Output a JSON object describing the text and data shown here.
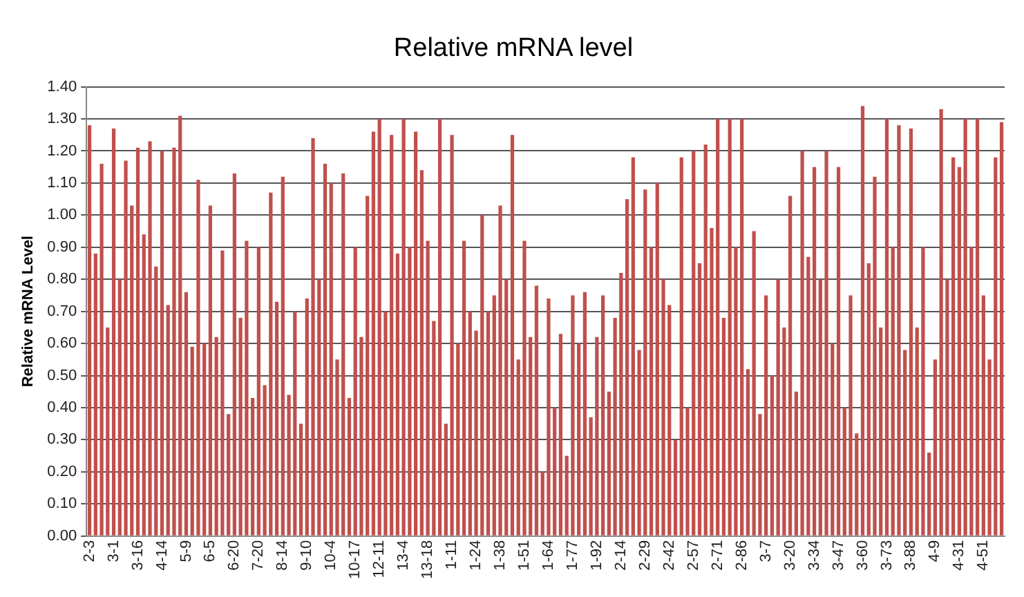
{
  "chart_data": {
    "type": "bar",
    "title": "Relative mRNA level",
    "ylabel": "Relative mRNA Level",
    "categories": [
      "2-3",
      null,
      null,
      null,
      "3-1",
      null,
      null,
      null,
      "3-16",
      null,
      null,
      null,
      "4-14",
      null,
      null,
      null,
      "5-9",
      null,
      null,
      null,
      "6-5",
      null,
      null,
      null,
      "6-20",
      null,
      null,
      null,
      "7-20",
      null,
      null,
      null,
      "8-14",
      null,
      null,
      null,
      "9-10",
      null,
      null,
      null,
      "10-4",
      null,
      null,
      null,
      "10-17",
      null,
      null,
      null,
      "12-11",
      null,
      null,
      null,
      "13-4",
      null,
      null,
      null,
      "13-18",
      null,
      null,
      null,
      "1-11",
      null,
      null,
      null,
      "1-24",
      null,
      null,
      null,
      "1-38",
      null,
      null,
      null,
      "1-51",
      null,
      null,
      null,
      "1-64",
      null,
      null,
      null,
      "1-77",
      null,
      null,
      null,
      "1-92",
      null,
      null,
      null,
      "2-14",
      null,
      null,
      null,
      "2-29",
      null,
      null,
      null,
      "2-42",
      null,
      null,
      null,
      "2-57",
      null,
      null,
      null,
      "2-71",
      null,
      null,
      null,
      "2-86",
      null,
      null,
      null,
      "3-7",
      null,
      null,
      null,
      "3-20",
      null,
      null,
      null,
      "3-34",
      null,
      null,
      null,
      "3-47",
      null,
      null,
      null,
      "3-60",
      null,
      null,
      null,
      "3-73",
      null,
      null,
      null,
      "3-88",
      null,
      null,
      null,
      "4-9",
      null,
      null,
      null,
      "4-31",
      null,
      null,
      null,
      "4-51",
      null,
      null,
      null
    ],
    "values": [
      1.28,
      0.88,
      1.16,
      0.65,
      1.27,
      0.8,
      1.17,
      1.03,
      1.21,
      0.94,
      1.23,
      0.84,
      1.2,
      0.72,
      1.21,
      1.31,
      0.76,
      0.59,
      1.11,
      0.6,
      1.03,
      0.62,
      0.89,
      0.38,
      1.13,
      0.68,
      0.92,
      0.43,
      0.9,
      0.47,
      1.07,
      0.73,
      1.12,
      0.44,
      0.7,
      0.35,
      0.74,
      1.24,
      0.8,
      1.16,
      1.1,
      0.55,
      1.13,
      0.43,
      0.9,
      0.62,
      1.06,
      1.26,
      1.3,
      0.7,
      1.25,
      0.88,
      1.3,
      0.9,
      1.26,
      1.14,
      0.92,
      0.67,
      1.3,
      0.35,
      1.25,
      0.6,
      0.92,
      0.7,
      0.64,
      1.0,
      0.7,
      0.75,
      1.03,
      0.8,
      1.25,
      0.55,
      0.92,
      0.62,
      0.78,
      0.2,
      0.74,
      0.4,
      0.63,
      0.25,
      0.75,
      0.6,
      0.76,
      0.37,
      0.62,
      0.75,
      0.45,
      0.68,
      0.82,
      1.05,
      1.18,
      0.58,
      1.08,
      0.9,
      1.1,
      0.8,
      0.72,
      0.3,
      1.18,
      0.4,
      1.2,
      0.85,
      1.22,
      0.96,
      1.3,
      0.68,
      1.3,
      0.9,
      1.3,
      0.52,
      0.95,
      0.38,
      0.75,
      0.5,
      0.8,
      0.65,
      1.06,
      0.45,
      1.2,
      0.87,
      1.15,
      0.8,
      1.2,
      0.6,
      1.15,
      0.4,
      0.75,
      0.32,
      1.34,
      0.85,
      1.12,
      0.65,
      1.3,
      0.9,
      1.28,
      0.58,
      1.27,
      0.65,
      0.9,
      0.26,
      0.55,
      1.33,
      0.8,
      1.18,
      1.15,
      1.3,
      0.9,
      1.3,
      0.75,
      0.55,
      1.18,
      1.29
    ],
    "color": "#c0504d",
    "ylim": [
      0,
      1.4
    ],
    "yticks": [
      {
        "value": 0,
        "label": "0.00"
      },
      {
        "value": 0.1,
        "label": "0.10"
      },
      {
        "value": 0.2,
        "label": "0.20"
      },
      {
        "value": 0.3,
        "label": "0.30"
      },
      {
        "value": 0.4,
        "label": "0.40"
      },
      {
        "value": 0.5,
        "label": "0.50"
      },
      {
        "value": 0.6,
        "label": "0.60"
      },
      {
        "value": 0.7,
        "label": "0.70"
      },
      {
        "value": 0.8,
        "label": "0.80"
      },
      {
        "value": 0.9,
        "label": "0.90"
      },
      {
        "value": 1.0,
        "label": "1.00"
      },
      {
        "value": 1.1,
        "label": "1.10"
      },
      {
        "value": 1.2,
        "label": "1.20"
      },
      {
        "value": 1.3,
        "label": "1.30"
      },
      {
        "value": 1.4,
        "label": "1.40"
      }
    ],
    "grid": "y"
  }
}
